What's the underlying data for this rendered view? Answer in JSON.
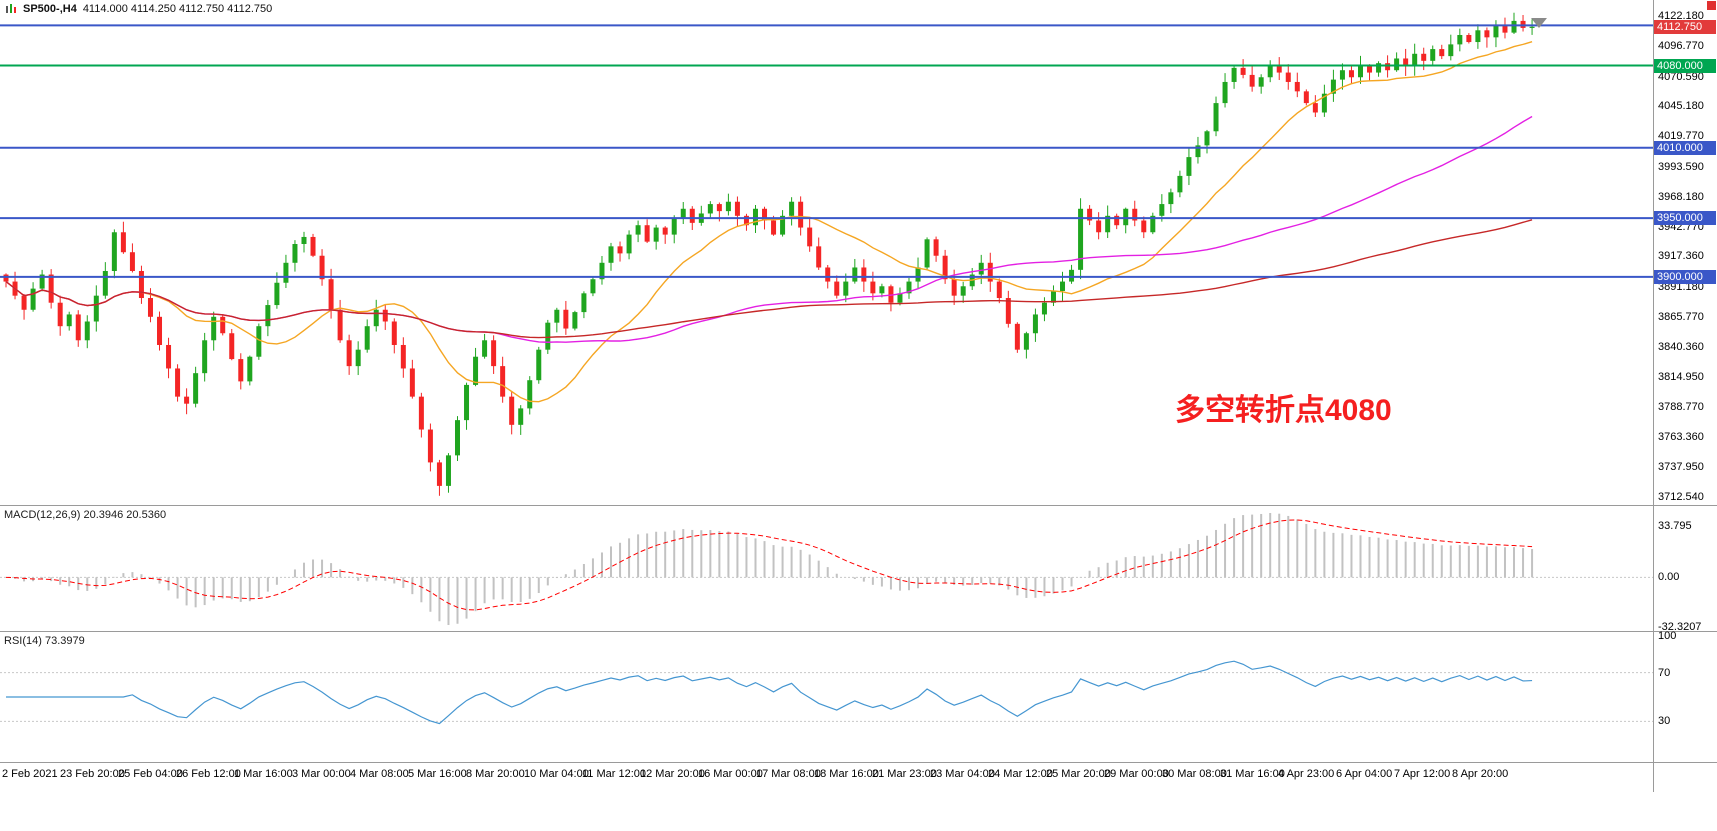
{
  "colors": {
    "up": "#1fa51f",
    "down": "#f42525",
    "wick_up": "#1fa51f",
    "wick_down": "#f42525",
    "hist": "#c2c2c2",
    "signal": "#ff0000",
    "rsi": "#4596d1",
    "level_dotted": "#c8c8c8",
    "separator": "#9a9a9a",
    "blue_line": "#3a57c8",
    "green_line": "#00a651",
    "last_price_bg": "#e23b3b",
    "ma_fast": "#f5a623",
    "ma_mid": "#e320e3",
    "ma_slow": "#c62828"
  },
  "chart": {
    "title": {
      "symbol": "SP500-,H4",
      "ohlc": "4114.000 4114.250 4112.750 4112.750"
    },
    "annotation": "多空转折点4080",
    "price_scale": {
      "boxes": [
        {
          "label": "4112.750",
          "price": 4112.75,
          "color": "#e23b3b",
          "role": "last-price"
        },
        {
          "label": "4080.000",
          "price": 4080.0,
          "color": "#00a651",
          "role": "level"
        },
        {
          "label": "4010.000",
          "price": 4010.0,
          "color": "#3a57c8",
          "role": "level"
        },
        {
          "label": "3950.000",
          "price": 3950.0,
          "color": "#3a57c8",
          "role": "level"
        },
        {
          "label": "3900.000",
          "price": 3900.0,
          "color": "#3a57c8",
          "role": "level"
        }
      ]
    },
    "hlines": [
      {
        "price": 4114.2,
        "color": "#3a57c8",
        "width": 2
      },
      {
        "price": 4080.0,
        "color": "#00a651",
        "width": 2
      },
      {
        "price": 4010.0,
        "color": "#3a57c8",
        "width": 2
      },
      {
        "price": 3950.0,
        "color": "#3a57c8",
        "width": 2
      },
      {
        "price": 3900.0,
        "color": "#3a57c8",
        "width": 2
      }
    ]
  },
  "macd_panel": {
    "label": "MACD(12,26,9)",
    "values": "20.3946 20.5360",
    "tick_top": "33.795",
    "tick_zero": "0.00",
    "tick_bottom": "-32.3207"
  },
  "rsi_panel": {
    "label": "RSI(14)",
    "value": "73.3979",
    "tick_top": "100",
    "tick_upper": "70",
    "tick_lower": "30"
  },
  "chart_data": {
    "type": "candlestick",
    "symbol": "SP500-",
    "timeframe": "H4",
    "title": "SP500-,H4 4114.000 4114.250 4112.750 4112.750",
    "ylim": [
      3712.54,
      4122.18
    ],
    "price_ticks": [
      "4122.180",
      "4096.770",
      "4070.590",
      "4045.180",
      "4019.770",
      "3993.590",
      "3968.180",
      "3942.770",
      "3917.360",
      "3891.180",
      "3865.770",
      "3840.360",
      "3814.950",
      "3788.770",
      "3763.360",
      "3737.950",
      "3712.540"
    ],
    "x_labels": [
      "2 Feb 2021",
      "23 Feb 20:00",
      "25 Feb 04:00",
      "26 Feb 12:00",
      "1 Mar 16:00",
      "3 Mar 00:00",
      "4 Mar 08:00",
      "5 Mar 16:00",
      "8 Mar 20:00",
      "10 Mar 04:00",
      "11 Mar 12:00",
      "12 Mar 20:00",
      "16 Mar 00:00",
      "17 Mar 08:00",
      "18 Mar 16:00",
      "21 Mar 23:00",
      "23 Mar 04:00",
      "24 Mar 12:00",
      "25 Mar 20:00",
      "29 Mar 00:00",
      "30 Mar 08:00",
      "31 Mar 16:00",
      "4 Apr 23:00",
      "6 Apr 04:00",
      "7 Apr 12:00",
      "8 Apr 20:00"
    ],
    "closes": [
      3896,
      3884,
      3872,
      3890,
      3902,
      3878,
      3858,
      3868,
      3846,
      3862,
      3884,
      3905,
      3938,
      3921,
      3905,
      3882,
      3866,
      3842,
      3822,
      3798,
      3792,
      3818,
      3846,
      3866,
      3852,
      3830,
      3811,
      3832,
      3858,
      3876,
      3895,
      3912,
      3928,
      3934,
      3918,
      3898,
      3872,
      3846,
      3824,
      3838,
      3858,
      3872,
      3862,
      3842,
      3822,
      3798,
      3770,
      3742,
      3722,
      3748,
      3778,
      3808,
      3832,
      3846,
      3824,
      3798,
      3774,
      3788,
      3812,
      3838,
      3861,
      3872,
      3856,
      3870,
      3886,
      3898,
      3912,
      3926,
      3920,
      3936,
      3944,
      3930,
      3942,
      3936,
      3950,
      3958,
      3946,
      3954,
      3962,
      3956,
      3964,
      3952,
      3944,
      3958,
      3948,
      3936,
      3952,
      3964,
      3942,
      3926,
      3908,
      3896,
      3884,
      3896,
      3908,
      3896,
      3886,
      3892,
      3878,
      3886,
      3896,
      3908,
      3932,
      3918,
      3898,
      3884,
      3892,
      3902,
      3912,
      3896,
      3882,
      3860,
      3838,
      3852,
      3868,
      3878,
      3888,
      3896,
      3906,
      3958,
      3948,
      3938,
      3952,
      3944,
      3958,
      3948,
      3938,
      3952,
      3962,
      3972,
      3986,
      4002,
      4012,
      4024,
      4048,
      4066,
      4078,
      4072,
      4062,
      4070,
      4080,
      4074,
      4066,
      4058,
      4048,
      4040,
      4056,
      4068,
      4076,
      4070,
      4080,
      4074,
      4082,
      4076,
      4086,
      4080,
      4090,
      4084,
      4094,
      4088,
      4098,
      4106,
      4100,
      4110,
      4104,
      4114,
      4108,
      4118,
      4112,
      4113
    ],
    "levels": {
      "green_line": 4080.0,
      "blue_lines": [
        4114.2,
        4010.0,
        3950.0,
        3900.0
      ],
      "last_price": 4112.75
    },
    "indicators": {
      "macd": {
        "fast": 12,
        "slow": 26,
        "signal": 9,
        "last_main": 20.3946,
        "last_signal": 20.536,
        "scale_ticks": [
          33.795,
          0.0,
          -32.3207
        ]
      },
      "rsi": {
        "period": 14,
        "last": 73.3979,
        "levels": [
          70,
          30
        ],
        "scale_ticks": [
          100,
          70,
          30
        ]
      },
      "moving_averages": [
        {
          "period": 16,
          "color": "#f5a623",
          "name": "fast-ma"
        },
        {
          "period": 55,
          "color": "#e320e3",
          "name": "mid-ma"
        },
        {
          "period": 130,
          "color": "#c62828",
          "name": "slow-ma"
        }
      ]
    }
  }
}
